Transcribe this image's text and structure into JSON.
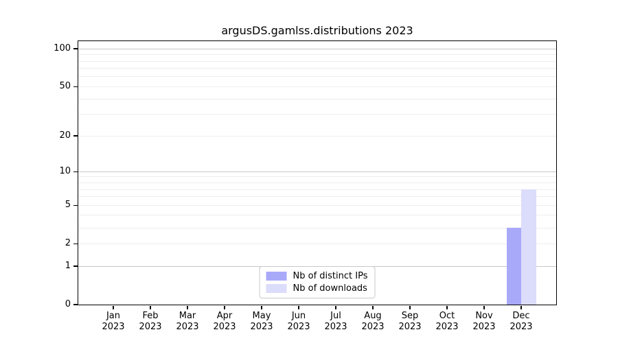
{
  "title": "argusDS.gamlss.distributions 2023",
  "colors": {
    "bar_distinct_ips": "#a9a9fa",
    "bar_downloads": "#dcdcfb",
    "grid_minor": "#ededed",
    "grid_major": "#c6c6c6",
    "axis": "#000000",
    "legend_border": "#c9c9c9"
  },
  "legend": {
    "items": [
      {
        "label": "Nb of distinct IPs",
        "color_key": "bar_distinct_ips"
      },
      {
        "label": "Nb of downloads",
        "color_key": "bar_downloads"
      }
    ]
  },
  "chart_data": {
    "type": "bar",
    "title": "argusDS.gamlss.distributions 2023",
    "categories": [
      "Jan 2023",
      "Feb 2023",
      "Mar 2023",
      "Apr 2023",
      "May 2023",
      "Jun 2023",
      "Jul 2023",
      "Aug 2023",
      "Sep 2023",
      "Oct 2023",
      "Nov 2023",
      "Dec 2023"
    ],
    "month_labels": [
      "Jan",
      "Feb",
      "Mar",
      "Apr",
      "May",
      "Jun",
      "Jul",
      "Aug",
      "Sep",
      "Oct",
      "Nov",
      "Dec"
    ],
    "year_label": "2023",
    "series": [
      {
        "name": "Nb of distinct IPs",
        "color_key": "bar_distinct_ips",
        "values": [
          0,
          0,
          0,
          0,
          0,
          0,
          0,
          0,
          0,
          0,
          0,
          3
        ]
      },
      {
        "name": "Nb of downloads",
        "color_key": "bar_downloads",
        "values": [
          0,
          0,
          0,
          0,
          0,
          0,
          0,
          0,
          0,
          0,
          0,
          7
        ]
      }
    ],
    "xlabel": "",
    "ylabel": "",
    "y_scale": "log1p",
    "ylim": [
      0,
      115
    ],
    "y_tick_values": [
      0,
      1,
      2,
      5,
      10,
      20,
      50,
      100
    ],
    "y_tick_labels": [
      "0",
      "1",
      "2",
      "5",
      "10",
      "20",
      "50",
      "100"
    ],
    "grid_minor_values": [
      2,
      3,
      4,
      5,
      6,
      7,
      8,
      9,
      20,
      30,
      40,
      50,
      60,
      70,
      80,
      90
    ],
    "grid_major_values": [
      1,
      10,
      100
    ],
    "grid": true,
    "legend_position": "lower center"
  }
}
